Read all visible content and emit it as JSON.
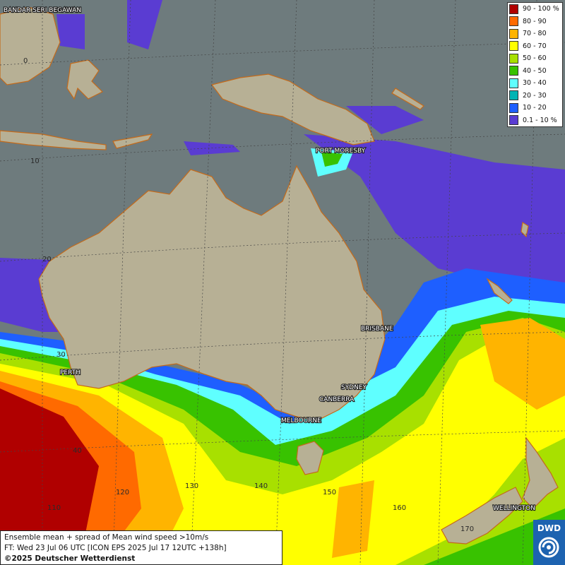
{
  "legend": [
    {
      "label": "90 - 100 %",
      "color": "#b00000"
    },
    {
      "label": "80 - 90",
      "color": "#ff6a00"
    },
    {
      "label": "70 - 80",
      "color": "#ffb400"
    },
    {
      "label": "60 - 70",
      "color": "#ffff00"
    },
    {
      "label": "50 - 60",
      "color": "#a8e000"
    },
    {
      "label": "40 - 50",
      "color": "#38c200"
    },
    {
      "label": "30 - 40",
      "color": "#5fffff"
    },
    {
      "label": "20 - 30",
      "color": "#00b4b4"
    },
    {
      "label": "10 - 20",
      "color": "#1e5fff"
    },
    {
      "label": "0.1 - 10 %",
      "color": "#5a3cd2"
    }
  ],
  "cities": {
    "bandar": "BANDAR SERI BEGAWAN",
    "port_moresby": "PORT MORESBY",
    "brisbane": "BRISBANE",
    "perth": "PERTH",
    "sydney": "SYDNEY",
    "canberra": "CANBERRA",
    "melbourne": "MELBOURNE",
    "wellington": "WELLINGTON"
  },
  "grid_labels": {
    "lat_0": "0",
    "lat_10": "10",
    "lat_20": "20",
    "lat_30": "30",
    "lat_40": "40",
    "lon_110": "110",
    "lon_120": "120",
    "lon_130": "130",
    "lon_140": "140",
    "lon_150": "150",
    "lon_160": "160",
    "lon_170": "170"
  },
  "info": {
    "line1": "Ensemble mean + spread of Mean wind speed >10m/s",
    "line2": "FT: Wed 23 Jul 06 UTC [ICON EPS 2025 Jul 17 12UTC +138h]",
    "copyright": "©2025 Deutscher Wetterdienst"
  },
  "logo": {
    "text": "DWD"
  }
}
